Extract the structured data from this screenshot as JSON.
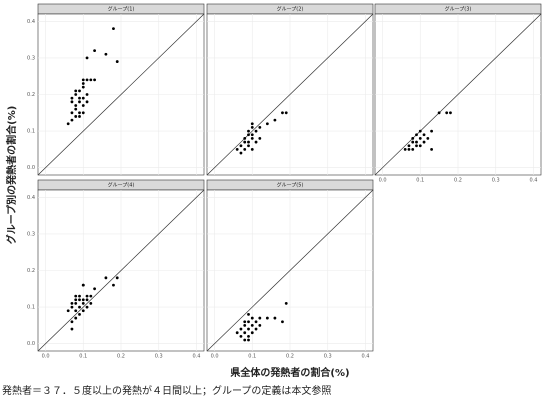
{
  "ylabel": "グループ別の発熱者の割合(%)",
  "xlabel": "県全体の発熱者の割合(%)",
  "caption": "発熱者＝３７．５度以上の発熱が４日間以上；グループの定義は本文参照",
  "chart_data": [
    {
      "type": "scatter",
      "title": "グループ(1)",
      "color": "#000000",
      "grid": true,
      "x": [
        0.06,
        0.07,
        0.07,
        0.07,
        0.07,
        0.08,
        0.08,
        0.08,
        0.08,
        0.08,
        0.09,
        0.09,
        0.09,
        0.09,
        0.09,
        0.1,
        0.1,
        0.1,
        0.1,
        0.1,
        0.1,
        0.11,
        0.11,
        0.11,
        0.12,
        0.13,
        0.13,
        0.16,
        0.18,
        0.19,
        0.11
      ],
      "values": [
        0.12,
        0.13,
        0.15,
        0.18,
        0.19,
        0.14,
        0.16,
        0.17,
        0.2,
        0.21,
        0.14,
        0.15,
        0.18,
        0.19,
        0.21,
        0.15,
        0.17,
        0.19,
        0.22,
        0.23,
        0.24,
        0.18,
        0.2,
        0.24,
        0.24,
        0.32,
        0.24,
        0.31,
        0.38,
        0.29,
        0.3
      ],
      "xlim": [
        -0.02,
        0.42
      ],
      "ylim": [
        -0.02,
        0.42
      ],
      "xticks": [
        {
          "value": 0,
          "label": "0.0"
        },
        0.1,
        0.2,
        0.3,
        0.4
      ],
      "yticks": [
        {
          "value": 0,
          "label": "0.0"
        },
        0.1,
        0.2,
        0.3,
        0.4
      ]
    },
    {
      "type": "scatter",
      "title": "グループ(2)",
      "color": "#000000",
      "grid": true,
      "x": [
        0.06,
        0.07,
        0.07,
        0.08,
        0.08,
        0.08,
        0.09,
        0.09,
        0.09,
        0.09,
        0.1,
        0.1,
        0.1,
        0.1,
        0.11,
        0.11,
        0.12,
        0.12,
        0.14,
        0.16,
        0.18,
        0.19,
        0.1
      ],
      "values": [
        0.05,
        0.04,
        0.06,
        0.05,
        0.07,
        0.08,
        0.06,
        0.07,
        0.09,
        0.1,
        0.05,
        0.08,
        0.09,
        0.11,
        0.07,
        0.1,
        0.08,
        0.11,
        0.12,
        0.13,
        0.15,
        0.15,
        0.12
      ],
      "xlim": [
        -0.02,
        0.42
      ],
      "ylim": [
        -0.02,
        0.42
      ],
      "xticks": [
        {
          "value": 0,
          "label": "0.0"
        },
        0.1,
        0.2,
        0.3,
        0.4
      ],
      "yticks": [
        {
          "value": 0,
          "label": "0.0"
        },
        0.1,
        0.2,
        0.3,
        0.4
      ]
    },
    {
      "type": "scatter",
      "title": "グループ(3)",
      "color": "#000000",
      "grid": true,
      "x": [
        0.06,
        0.07,
        0.07,
        0.08,
        0.08,
        0.08,
        0.09,
        0.09,
        0.09,
        0.1,
        0.1,
        0.1,
        0.11,
        0.11,
        0.12,
        0.13,
        0.13,
        0.15,
        0.17,
        0.18
      ],
      "values": [
        0.05,
        0.05,
        0.06,
        0.05,
        0.07,
        0.08,
        0.06,
        0.07,
        0.09,
        0.06,
        0.08,
        0.1,
        0.07,
        0.09,
        0.08,
        0.05,
        0.1,
        0.15,
        0.15,
        0.15
      ],
      "xlim": [
        -0.02,
        0.42
      ],
      "ylim": [
        -0.02,
        0.42
      ],
      "xticks": [
        {
          "value": 0,
          "label": "0.0"
        },
        0.1,
        0.2,
        0.3,
        0.4
      ],
      "yticks": [
        {
          "value": 0,
          "label": "0.0"
        },
        0.1,
        0.2,
        0.3,
        0.4
      ]
    },
    {
      "type": "scatter",
      "title": "グループ(4)",
      "color": "#000000",
      "grid": true,
      "x": [
        0.06,
        0.07,
        0.07,
        0.07,
        0.08,
        0.08,
        0.08,
        0.08,
        0.08,
        0.09,
        0.09,
        0.09,
        0.09,
        0.1,
        0.1,
        0.1,
        0.1,
        0.11,
        0.11,
        0.11,
        0.12,
        0.12,
        0.13,
        0.16,
        0.18,
        0.19,
        0.1,
        0.07
      ],
      "values": [
        0.09,
        0.04,
        0.1,
        0.11,
        0.07,
        0.09,
        0.11,
        0.12,
        0.13,
        0.08,
        0.1,
        0.12,
        0.13,
        0.09,
        0.11,
        0.12,
        0.16,
        0.1,
        0.12,
        0.13,
        0.11,
        0.13,
        0.15,
        0.18,
        0.16,
        0.18,
        0.16,
        0.06
      ],
      "xlim": [
        -0.02,
        0.42
      ],
      "ylim": [
        -0.02,
        0.42
      ],
      "xticks": [
        {
          "value": 0,
          "label": "0.0"
        },
        0.1,
        0.2,
        0.3,
        0.4
      ],
      "yticks": [
        {
          "value": 0,
          "label": "0.0"
        },
        0.1,
        0.2,
        0.3,
        0.4
      ]
    },
    {
      "type": "scatter",
      "title": "グループ(5)",
      "color": "#000000",
      "grid": true,
      "x": [
        0.06,
        0.07,
        0.07,
        0.08,
        0.08,
        0.08,
        0.08,
        0.09,
        0.09,
        0.09,
        0.09,
        0.1,
        0.1,
        0.1,
        0.11,
        0.11,
        0.12,
        0.12,
        0.14,
        0.16,
        0.18,
        0.19,
        0.09
      ],
      "values": [
        0.03,
        0.02,
        0.04,
        0.01,
        0.03,
        0.05,
        0.06,
        0.01,
        0.02,
        0.04,
        0.06,
        0.03,
        0.05,
        0.07,
        0.04,
        0.06,
        0.05,
        0.07,
        0.07,
        0.07,
        0.06,
        0.11,
        0.08
      ],
      "xlim": [
        -0.02,
        0.42
      ],
      "ylim": [
        -0.02,
        0.42
      ],
      "xticks": [
        {
          "value": 0,
          "label": "0.0"
        },
        0.1,
        0.2,
        0.3,
        0.4
      ],
      "yticks": [
        {
          "value": 0,
          "label": "0.0"
        },
        0.1,
        0.2,
        0.3,
        0.4
      ]
    }
  ]
}
